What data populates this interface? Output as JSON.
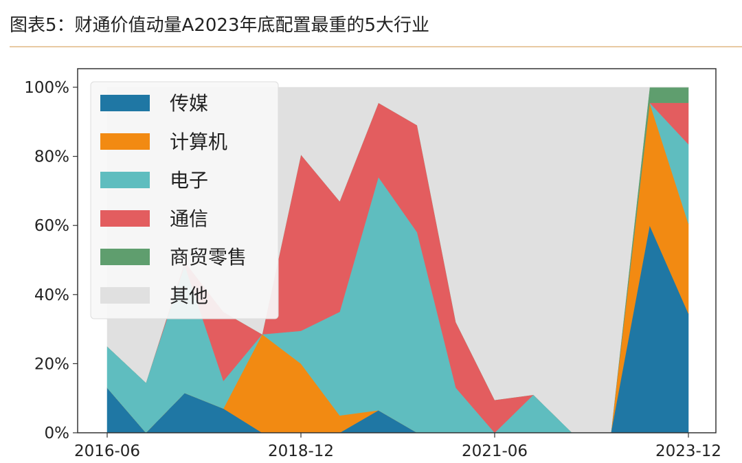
{
  "title": "图表5：财通价值动量A2023年底配置最重的5大行业",
  "chart_data": {
    "type": "area",
    "stacked": true,
    "title": "图表5：财通价值动量A2023年底配置最重的5大行业",
    "xlabel": "",
    "ylabel": "",
    "ylim": [
      0,
      100
    ],
    "y_ticks": [
      "0%",
      "20%",
      "40%",
      "60%",
      "80%",
      "100%"
    ],
    "x_ticks": [
      "2016-06",
      "2018-12",
      "2021-06",
      "2023-12"
    ],
    "legend_position": "upper left",
    "grid": false,
    "x": [
      "2016-06",
      "2016-12",
      "2017-06",
      "2017-12",
      "2018-06",
      "2018-12",
      "2019-06",
      "2019-12",
      "2020-06",
      "2020-12",
      "2021-06",
      "2021-12",
      "2022-06",
      "2022-12",
      "2023-06",
      "2023-12"
    ],
    "series": [
      {
        "name": "传媒",
        "color": "#1f77a4",
        "values": [
          13,
          0,
          11.5,
          7,
          0,
          0,
          0,
          6.5,
          0,
          0,
          0,
          0,
          0,
          0,
          60,
          34.5
        ]
      },
      {
        "name": "计算机",
        "color": "#f28a12",
        "values": [
          0,
          0,
          0,
          0,
          28.5,
          20,
          5,
          0,
          0,
          0,
          0,
          0,
          0,
          0,
          35.5,
          26
        ]
      },
      {
        "name": "电子",
        "color": "#5fbdbf",
        "values": [
          12,
          14.5,
          37,
          8,
          0,
          9.5,
          30,
          67.5,
          58,
          13,
          0,
          11,
          0,
          0,
          0,
          23
        ]
      },
      {
        "name": "通信",
        "color": "#e35d5f",
        "values": [
          0,
          0,
          1,
          20,
          0,
          51,
          32,
          21.5,
          31,
          19,
          9.5,
          0,
          0,
          0,
          0,
          12
        ]
      },
      {
        "name": "商贸零售",
        "color": "#5f9e6e",
        "values": [
          0,
          0,
          0,
          0,
          0,
          0,
          0,
          0,
          0,
          0,
          0,
          0,
          0,
          0,
          4.5,
          4.5
        ]
      },
      {
        "name": "其他",
        "color": "#e0e0e0",
        "values": [
          75,
          85.5,
          50.5,
          65,
          71.5,
          19.5,
          33,
          4.5,
          11,
          68,
          90.5,
          89,
          100,
          100,
          0,
          0
        ]
      }
    ]
  }
}
